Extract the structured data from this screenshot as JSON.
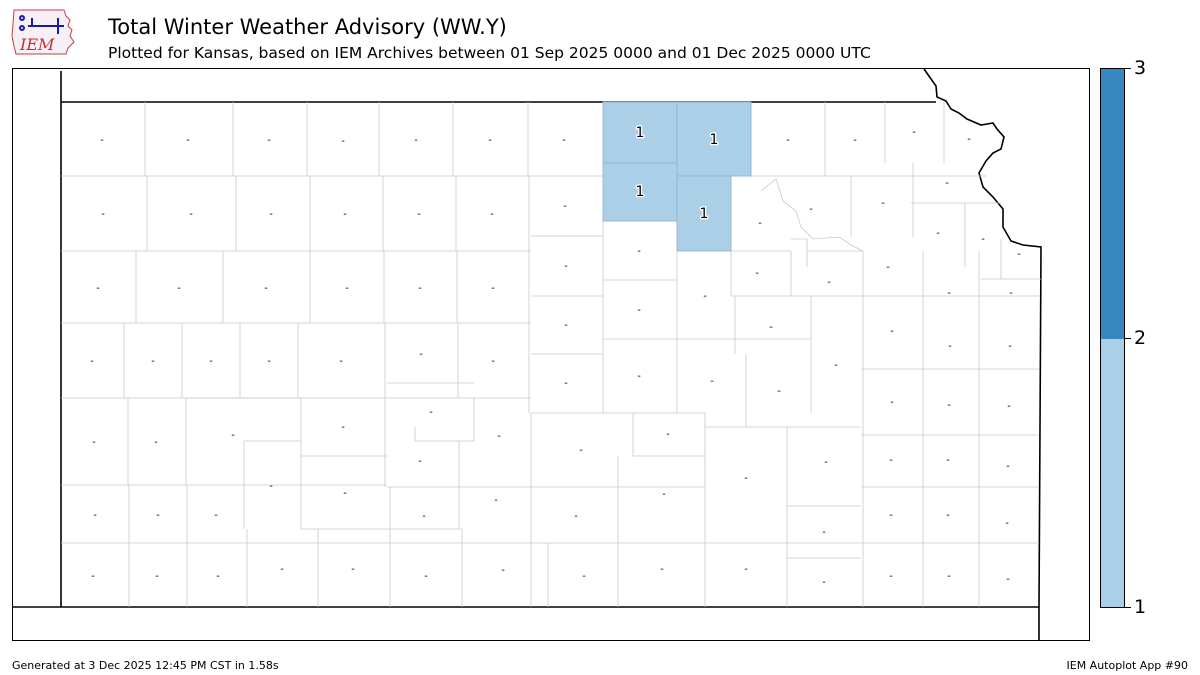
{
  "header": {
    "logo_text": "IEM",
    "title": "Total Winter Weather Advisory (WW.Y)",
    "subtitle": "Plotted for Kansas, based on IEM Archives  between 01 Sep 2025 0000 and 01 Dec 2025 0000 UTC"
  },
  "map": {
    "state": "Kansas",
    "colors": {
      "fill_value_1": "#abcfe6",
      "fill_value_2": "#3787c0",
      "county_outline": "#cccccc",
      "state_outline": "#000000"
    },
    "counties_with_advisories": [
      {
        "value": "1"
      },
      {
        "value": "1"
      },
      {
        "value": "1"
      },
      {
        "value": "1"
      }
    ],
    "no_data_marker": "-"
  },
  "colorbar": {
    "labels": [
      "3",
      "2",
      "1"
    ],
    "colors": [
      "#3787c0",
      "#abcfe6"
    ]
  },
  "footer": {
    "generated": "Generated at 3 Dec 2025 12:45 PM CST in 1.58s",
    "app": "IEM Autoplot App #90"
  }
}
